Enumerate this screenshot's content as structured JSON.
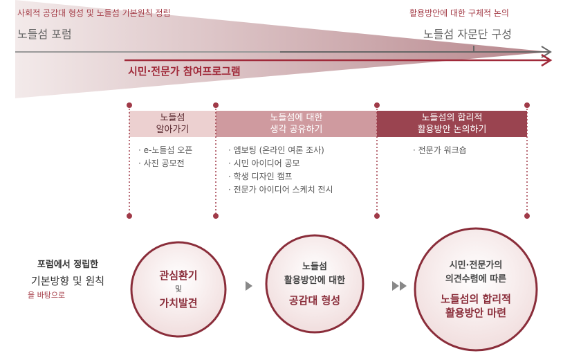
{
  "timeline": {
    "top_left_note": "사회적 공감대 형성 및 노들섬 기본원칙 정립",
    "top_left_label": "노들섬 포럼",
    "top_right_note": "활용방안에 대한 구체적 논의",
    "top_right_label": "노들섬 자문단 구성",
    "program_label": "시민·전문가 참여프로그램"
  },
  "phases": [
    {
      "title": [
        "노들섬",
        "알아가기"
      ],
      "items": [
        "e-노들섬 오픈",
        "사진 공모전"
      ]
    },
    {
      "title": [
        "노들섬에 대한",
        "생각 공유하기"
      ],
      "items": [
        "엠보팅 (온라인 여론 조사)",
        "시민 아이디어 공모",
        "학생 디자인 캠프",
        "전문가 아이디어 스케치 전시"
      ]
    },
    {
      "title": [
        "노들섬의 합리적",
        "활용방안 논의하기"
      ],
      "items": [
        "전문가 워크숍"
      ]
    }
  ],
  "outcomes": {
    "intro": [
      "포럼에서 정립한",
      "기본방향 및 원칙",
      "을 바탕으로"
    ],
    "circles": [
      {
        "lines": [
          "관심환기",
          "및",
          "가치발견"
        ]
      },
      {
        "lines": [
          "노들섬",
          "활용방안에 대한",
          "공감대 형성"
        ]
      },
      {
        "lines": [
          "시민·전문가의",
          "의견수렴에 따른",
          "노들섬의 합리적",
          "활용방안 마련"
        ]
      }
    ]
  }
}
